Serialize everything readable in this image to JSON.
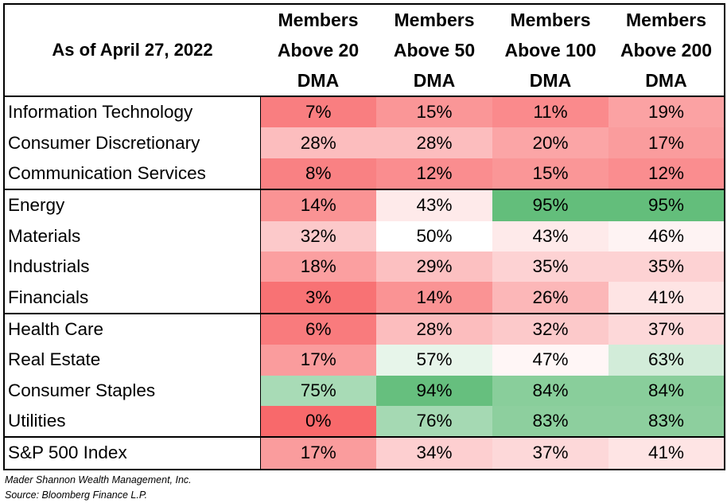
{
  "chart_data": {
    "type": "table",
    "header": {
      "corner": "As of April 27, 2022",
      "columns": [
        [
          "Members",
          "Above 20",
          "DMA"
        ],
        [
          "Members",
          "Above 50",
          "DMA"
        ],
        [
          "Members",
          "Above 100",
          "DMA"
        ],
        [
          "Members",
          "Above 200",
          "DMA"
        ]
      ]
    },
    "groups": [
      [
        {
          "name": "Information Technology",
          "values": [
            "7%",
            "15%",
            "11%",
            "19%"
          ]
        },
        {
          "name": "Consumer Discretionary",
          "values": [
            "28%",
            "28%",
            "20%",
            "17%"
          ]
        },
        {
          "name": "Communication Services",
          "values": [
            "8%",
            "12%",
            "15%",
            "12%"
          ]
        }
      ],
      [
        {
          "name": "Energy",
          "values": [
            "14%",
            "43%",
            "95%",
            "95%"
          ]
        },
        {
          "name": "Materials",
          "values": [
            "32%",
            "50%",
            "43%",
            "46%"
          ]
        },
        {
          "name": "Industrials",
          "values": [
            "18%",
            "29%",
            "35%",
            "35%"
          ]
        },
        {
          "name": "Financials",
          "values": [
            "3%",
            "14%",
            "26%",
            "41%"
          ]
        }
      ],
      [
        {
          "name": "Health Care",
          "values": [
            "6%",
            "28%",
            "32%",
            "37%"
          ]
        },
        {
          "name": "Real Estate",
          "values": [
            "17%",
            "57%",
            "47%",
            "63%"
          ]
        },
        {
          "name": "Consumer Staples",
          "values": [
            "75%",
            "94%",
            "84%",
            "84%"
          ]
        },
        {
          "name": "Utilities",
          "values": [
            "0%",
            "76%",
            "83%",
            "83%"
          ]
        }
      ],
      [
        {
          "name": "S&P 500 Index",
          "values": [
            "17%",
            "34%",
            "37%",
            "41%"
          ]
        }
      ]
    ],
    "color_scale": {
      "low": "#f8696b",
      "mid": "#ffffff",
      "high": "#63be7b",
      "mid_value": 50,
      "max_value": 95
    }
  },
  "footnotes": {
    "line1": "Mader Shannon Wealth Management, Inc.",
    "line2": "Source: Bloomberg Finance L.P."
  }
}
